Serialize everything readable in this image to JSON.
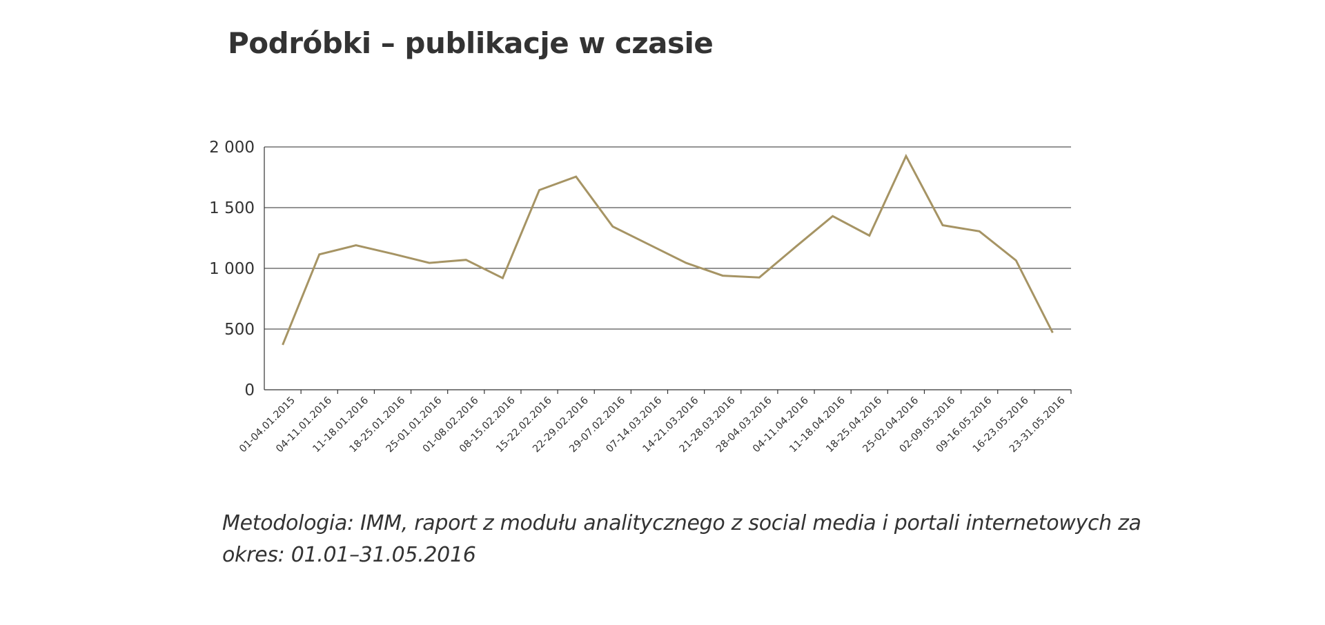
{
  "chart_data": {
    "type": "line",
    "title": "Podróbki – publikacje w czasie",
    "xlabel": "",
    "ylabel": "",
    "ylim": [
      0,
      2000
    ],
    "y_ticks": [
      "0",
      "500",
      "1 000",
      "1 500",
      "2 000"
    ],
    "y_tick_values": [
      0,
      500,
      1000,
      1500,
      2000
    ],
    "grid": true,
    "categories": [
      "01-04.01.2015",
      "04-11.01.2016",
      "11-18.01.2016",
      "18-25.01.2016",
      "25-01.01.2016",
      "01-08.02.2016",
      "08-15.02.2016",
      "15-22.02.2016",
      "22-29.02.2016",
      "29-07.02.2016",
      "07-14.03.2016",
      "14-21.03.2016",
      "21-28.03.2016",
      "28-04.03.2016",
      "04-11.04.2016",
      "11-18.04.2016",
      "18-25.04.2016",
      "25-02.04.2016",
      "02-09.05.2016",
      "09-16.05.2016",
      "16-23.05.2016",
      "23-31.05.2016"
    ],
    "series": [
      {
        "values": [
          370,
          1115,
          1190,
          1120,
          1045,
          1070,
          920,
          1645,
          1755,
          1345,
          1195,
          1045,
          940,
          925,
          1180,
          1430,
          1270,
          1925,
          1355,
          1305,
          1065,
          470
        ],
        "color": "#A69464"
      }
    ]
  },
  "methodology": "Metodologia: IMM, raport z modułu analitycznego z social media i portali internetowych za okres: 01.01–31.05.2016"
}
